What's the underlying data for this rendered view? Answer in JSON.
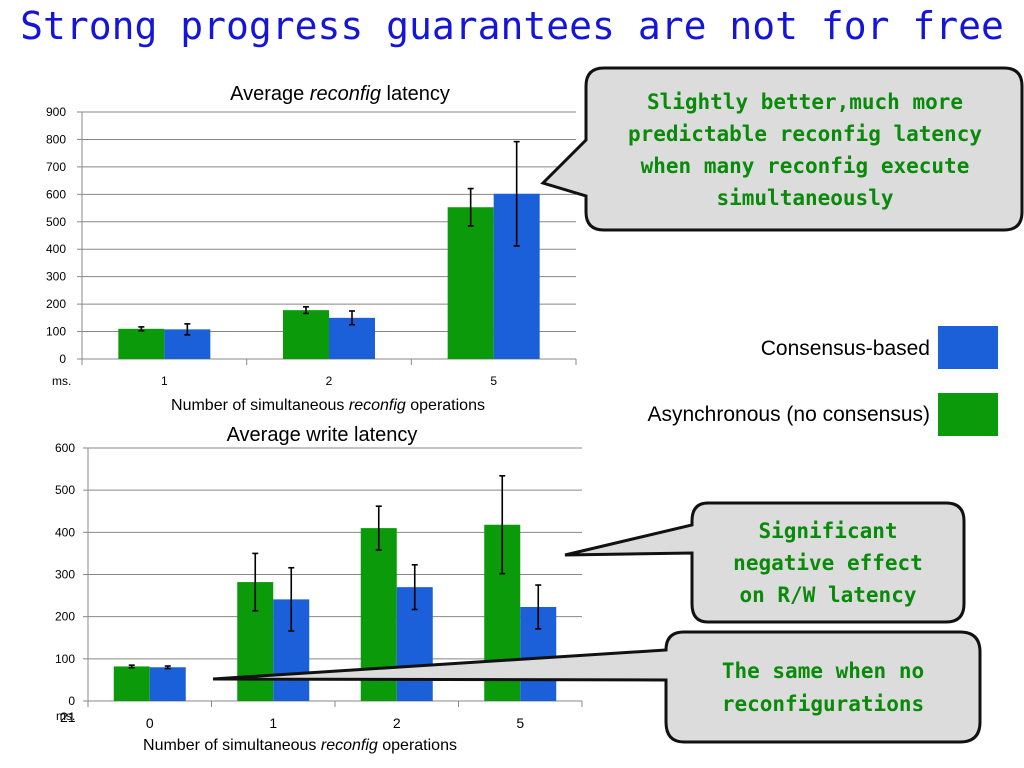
{
  "slide": {
    "title": "Strong progress guarantees are not for free",
    "page_number": "21"
  },
  "colors": {
    "consensus": "#1b5fd9",
    "async": "#0a9a0a",
    "callout_fill": "#dcdcdc",
    "callout_text": "#0a8a0a",
    "title": "#1515d8"
  },
  "legend": [
    {
      "label": "Consensus-based",
      "color": "#1b5fd9"
    },
    {
      "label": "Asynchronous (no consensus)",
      "color": "#0a9a0a"
    }
  ],
  "callouts": {
    "top": [
      "Slightly better,much more",
      "predictable reconfig latency",
      "when many reconfig execute",
      "simultaneously"
    ],
    "middle": [
      "Significant",
      "negative effect",
      "on R/W latency"
    ],
    "bottom": [
      "The same when no",
      "reconfigurations"
    ]
  },
  "chart_data": [
    {
      "type": "bar",
      "title_prefix": "Average ",
      "title_italic": "reconfig",
      "title_suffix": " latency",
      "xlabel_prefix": "Number of simultaneous ",
      "xlabel_italic": "reconfig",
      "xlabel_suffix": " operations",
      "ylabel": "ms.",
      "categories": [
        "1",
        "2",
        "5"
      ],
      "ylim": [
        0,
        900
      ],
      "yticks": [
        0,
        100,
        200,
        300,
        400,
        500,
        600,
        700,
        800,
        900
      ],
      "grid": true,
      "series": [
        {
          "name": "Asynchronous (no consensus)",
          "color": "#0a9a0a",
          "values": [
            110,
            178,
            553
          ],
          "err": [
            7,
            12,
            68
          ]
        },
        {
          "name": "Consensus-based",
          "color": "#1b5fd9",
          "values": [
            108,
            150,
            602
          ],
          "err": [
            20,
            25,
            190
          ]
        }
      ]
    },
    {
      "type": "bar",
      "title_prefix": "Average write latency",
      "title_italic": "",
      "title_suffix": "",
      "xlabel_prefix": "Number of simultaneous ",
      "xlabel_italic": "reconfig",
      "xlabel_suffix": " operations",
      "ylabel": "ms.",
      "categories": [
        "0",
        "1",
        "2",
        "5"
      ],
      "ylim": [
        0,
        600
      ],
      "yticks": [
        0,
        100,
        200,
        300,
        400,
        500,
        600
      ],
      "grid": true,
      "series": [
        {
          "name": "Asynchronous (no consensus)",
          "color": "#0a9a0a",
          "values": [
            82,
            282,
            410,
            418
          ],
          "err": [
            3,
            68,
            52,
            116
          ]
        },
        {
          "name": "Consensus-based",
          "color": "#1b5fd9",
          "values": [
            80,
            241,
            270,
            223
          ],
          "err": [
            3,
            75,
            53,
            52
          ]
        }
      ]
    }
  ]
}
